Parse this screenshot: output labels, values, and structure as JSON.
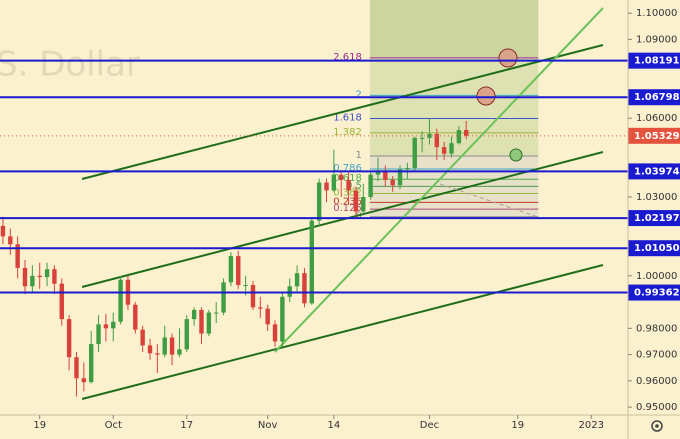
{
  "chart_data": {
    "type": "candlestick",
    "watermark": "S. Dollar",
    "xlim": [
      -0.4,
      85
    ],
    "ylim": [
      0.947,
      1.105
    ],
    "xticks": [
      {
        "value": 5,
        "label": "19"
      },
      {
        "value": 15,
        "label": "Oct"
      },
      {
        "value": 25,
        "label": "17"
      },
      {
        "value": 36,
        "label": "Nov"
      },
      {
        "value": 45,
        "label": "14"
      },
      {
        "value": 58,
        "label": "Dec"
      },
      {
        "value": 70,
        "label": "19"
      },
      {
        "value": 80,
        "label": "2023"
      }
    ],
    "yticks": [
      {
        "value": 1.1,
        "label": "1.10000"
      },
      {
        "value": 1.09,
        "label": "1.09000"
      },
      {
        "value": 1.06,
        "label": "1.06000"
      },
      {
        "value": 1.03,
        "label": "1.03000"
      },
      {
        "value": 1.0,
        "label": "1.00000"
      },
      {
        "value": 0.98,
        "label": "0.98000"
      },
      {
        "value": 0.97,
        "label": "0.97000"
      },
      {
        "value": 0.96,
        "label": "0.96000"
      },
      {
        "value": 0.95,
        "label": "0.95000"
      }
    ],
    "up_color": "#3f9d44",
    "down_color": "#d9413b",
    "open": [
      1.019,
      1.015,
      1.012,
      1.003,
      0.996,
      1.0,
      0.9995,
      1.0025,
      0.997,
      0.9835,
      0.969,
      0.961,
      0.9595,
      0.974,
      0.9815,
      0.98,
      0.9825,
      0.9985,
      0.989,
      0.9795,
      0.9735,
      0.9705,
      0.97,
      0.9765,
      0.97,
      0.972,
      0.9835,
      0.987,
      0.978,
      0.986,
      0.986,
      0.9975,
      1.0075,
      0.9965,
      0.9965,
      0.988,
      0.9875,
      0.9815,
      0.975,
      0.992,
      0.996,
      1.001,
      0.9895,
      1.021,
      1.0355,
      1.0325,
      1.0385,
      1.0365,
      1.0325,
      1.0245,
      1.03,
      1.0385,
      1.04,
      1.0365,
      1.0345,
      1.0405,
      1.041,
      1.0525,
      1.0525,
      1.054,
      1.049,
      1.0465,
      1.0505,
      1.0555
    ],
    "high": [
      1.0225,
      1.018,
      1.015,
      1.006,
      1.004,
      1.005,
      1.005,
      1.004,
      0.999,
      0.985,
      0.971,
      0.967,
      0.979,
      0.985,
      0.9855,
      0.986,
      0.9999,
      1.0,
      0.99,
      0.981,
      0.976,
      0.974,
      0.981,
      0.978,
      0.98,
      0.985,
      0.988,
      0.988,
      0.987,
      0.99,
      0.999,
      1.009,
      1.0095,
      1.0,
      0.998,
      0.992,
      0.989,
      0.983,
      0.994,
      0.999,
      1.004,
      1.003,
      1.022,
      1.037,
      1.037,
      1.048,
      1.04,
      1.04,
      1.034,
      1.035,
      1.04,
      1.045,
      1.042,
      1.038,
      1.042,
      1.043,
      1.053,
      1.055,
      1.06,
      1.056,
      1.051,
      1.053,
      1.057,
      1.059
    ],
    "low": [
      1.012,
      1.008,
      0.999,
      0.993,
      0.994,
      0.995,
      0.996,
      0.993,
      0.981,
      0.964,
      0.954,
      0.956,
      0.959,
      0.971,
      0.975,
      0.975,
      0.9815,
      0.987,
      0.978,
      0.971,
      0.968,
      0.963,
      0.969,
      0.966,
      0.969,
      0.971,
      0.981,
      0.974,
      0.977,
      0.982,
      0.985,
      0.996,
      0.995,
      0.9925,
      0.987,
      0.984,
      0.979,
      0.973,
      0.973,
      0.99,
      0.994,
      0.988,
      0.989,
      1.019,
      1.028,
      1.032,
      1.03,
      1.027,
      1.022,
      1.023,
      1.029,
      1.036,
      1.034,
      1.032,
      1.033,
      1.037,
      1.04,
      1.047,
      1.05,
      1.044,
      1.044,
      1.045,
      1.05,
      1.052
    ],
    "close": [
      1.015,
      1.012,
      1.003,
      0.996,
      1.0,
      0.9995,
      1.0025,
      0.997,
      0.9835,
      0.969,
      0.961,
      0.9595,
      0.974,
      0.9815,
      0.98,
      0.9825,
      0.9985,
      0.989,
      0.9795,
      0.9735,
      0.9705,
      0.97,
      0.9765,
      0.97,
      0.972,
      0.9835,
      0.987,
      0.978,
      0.986,
      0.986,
      0.9975,
      1.0075,
      0.9965,
      0.9965,
      0.988,
      0.9875,
      0.9815,
      0.975,
      0.992,
      0.996,
      1.001,
      0.9895,
      1.021,
      1.0355,
      1.0325,
      1.0385,
      1.0365,
      1.0325,
      1.0245,
      1.03,
      1.0385,
      1.04,
      1.0365,
      1.0345,
      1.0405,
      1.041,
      1.0525,
      1.0525,
      1.054,
      1.049,
      1.0465,
      1.0505,
      1.0555,
      1.0533
    ],
    "levels": [
      {
        "value": 1.08191,
        "label": "1.08191"
      },
      {
        "value": 1.06798,
        "label": "1.06798"
      },
      {
        "value": 1.03974,
        "label": "1.03974"
      },
      {
        "value": 1.02197,
        "label": "1.02197"
      },
      {
        "value": 1.0105,
        "label": "1.01050"
      },
      {
        "value": 0.99362,
        "label": "0.99362"
      }
    ],
    "level_color": "#1a1ad0",
    "last_price": {
      "value": 1.05329,
      "label": "1.05329"
    },
    "last_price_color": "#e5533f",
    "fib_levels": [
      2.618,
      2,
      1.618,
      1.382,
      1,
      0.786,
      0.618,
      0.5,
      0.382,
      0.236,
      0.125,
      0
    ],
    "fib_colors": [
      "#9c2a8c",
      "#38a3c7",
      "#3a55c9",
      "#9bb43a",
      "#8a8a8a",
      "#3fa5c9",
      "#4bb04b",
      "#4c9a4c",
      "#8fb93a",
      "#c0392b",
      "#b04a7a",
      "#8a8a8a"
    ],
    "fib_range": [
      1.0225,
      1.0456
    ],
    "fib_x": [
      49.9,
      72.8
    ]
  }
}
